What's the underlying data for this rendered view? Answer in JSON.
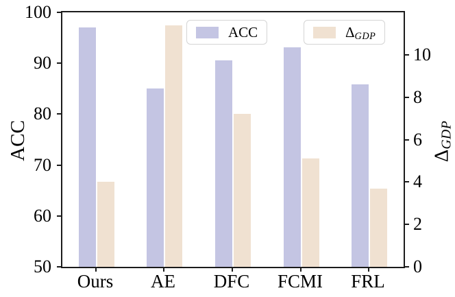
{
  "chart_data": {
    "type": "bar",
    "categories": [
      "Ours",
      "AE",
      "DFC",
      "FCMI",
      "FRL"
    ],
    "series": [
      {
        "name": "ACC",
        "axis": "left",
        "color": "#c4c5e3",
        "values": [
          97.0,
          85.0,
          90.5,
          93.1,
          85.8
        ]
      },
      {
        "name": "Δ_GDP",
        "axis": "right",
        "color": "#f0e1d1",
        "values": [
          4.0,
          11.4,
          7.2,
          5.1,
          3.7
        ]
      }
    ],
    "left_axis": {
      "label": "ACC",
      "ticks": [
        50,
        60,
        70,
        80,
        90,
        100
      ],
      "lim": [
        50,
        100
      ]
    },
    "right_axis": {
      "label_main": "Δ",
      "label_sub": "GDP",
      "ticks": [
        0,
        2,
        4,
        6,
        8,
        10
      ],
      "lim": [
        0,
        12
      ]
    },
    "legend": [
      {
        "label": "ACC"
      },
      {
        "label_main": "Δ",
        "label_sub": "GDP"
      }
    ],
    "grid": false,
    "legend_position": "top",
    "spine_color": "#1b1b1b"
  }
}
